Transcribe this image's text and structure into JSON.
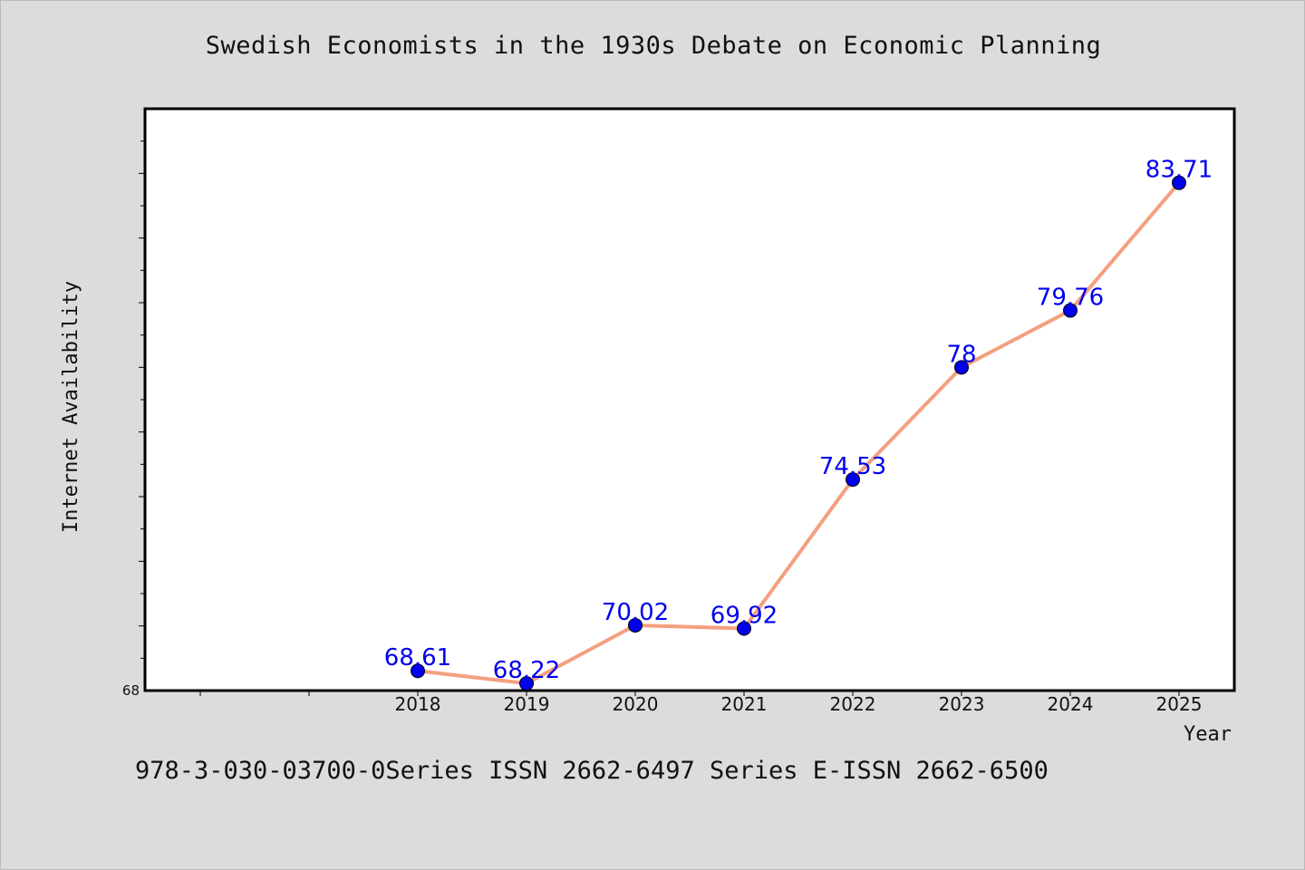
{
  "chart_data": {
    "type": "line",
    "title": "Swedish Economists in the 1930s Debate on Economic Planning",
    "xlabel": "Year",
    "ylabel": "Internet Availability",
    "x": [
      "2018",
      "2019",
      "2020",
      "2021",
      "2022",
      "2023",
      "2024",
      "2025"
    ],
    "series": [
      {
        "values": [
          68.61,
          68.22,
          70.02,
          69.92,
          74.53,
          78,
          79.76,
          83.71
        ],
        "labels": [
          "68.61",
          "68.22",
          "70.02",
          "69.92",
          "74.53",
          "78",
          "79.76",
          "83.71"
        ],
        "line_color": "#f4a080",
        "marker_color": "#0000ee"
      }
    ],
    "ylim": [
      68,
      86
    ],
    "y_tick_labels": [
      "68"
    ],
    "grid": false,
    "legend": "none"
  },
  "footnote": "978-3-030-03700-0Series ISSN 2662-6497 Series E-ISSN 2662-6500",
  "colors": {
    "background": "#dcdcdc",
    "plot_area": "#ffffff",
    "line": "#f4a080",
    "marker": "#0000ee",
    "data_label": "#0000ee"
  }
}
